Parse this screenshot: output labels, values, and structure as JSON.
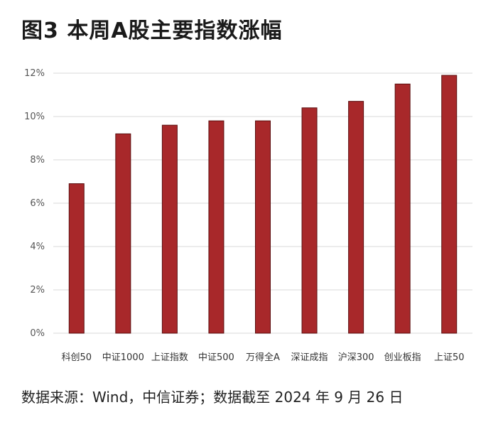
{
  "title": "图3  本周A股主要指数涨幅",
  "source": "数据来源：Wind，中信证券；数据截至 2024 年 9 月 26 日",
  "chart_data": {
    "type": "bar",
    "categories": [
      "科创50",
      "中证1000",
      "上证指数",
      "中证500",
      "万得全A",
      "深证成指",
      "沪深300",
      "创业板指",
      "上证50"
    ],
    "values": [
      6.9,
      9.2,
      9.6,
      9.8,
      9.8,
      10.4,
      10.7,
      11.5,
      11.9
    ],
    "ylim": [
      0,
      12
    ],
    "yticks": [
      "0%",
      "2%",
      "4%",
      "6%",
      "8%",
      "10%",
      "12%"
    ],
    "bar_color": "#a8282a",
    "grid": true,
    "legend": "none"
  }
}
